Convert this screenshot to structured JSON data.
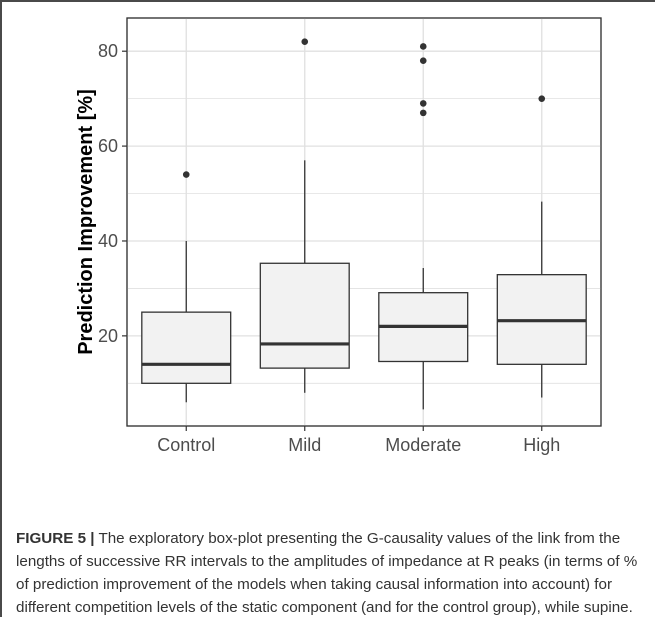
{
  "chart_data": {
    "type": "box",
    "categories": [
      "Control",
      "Mild",
      "Moderate",
      "High"
    ],
    "ylabel": "Prediction Improvement [%]",
    "xlabel": "",
    "ylim": [
      1,
      87
    ],
    "yticks": [
      20,
      40,
      60,
      80
    ],
    "grid": true,
    "colors": {
      "box_fill": "#f2f2f2",
      "line": "#333333",
      "grid": "#e0e0e0",
      "panel": "#ffffff"
    },
    "boxes": [
      {
        "category": "Control",
        "whisker_low": 6,
        "q1": 10,
        "median": 14,
        "q3": 25,
        "whisker_high": 40,
        "outliers": [
          54
        ]
      },
      {
        "category": "Mild",
        "whisker_low": 8,
        "q1": 13.2,
        "median": 18.3,
        "q3": 35.3,
        "whisker_high": 57,
        "outliers": [
          82
        ]
      },
      {
        "category": "Moderate",
        "whisker_low": 4.5,
        "q1": 14.6,
        "median": 22,
        "q3": 29.1,
        "whisker_high": 34.3,
        "outliers": [
          67,
          69,
          78,
          81
        ]
      },
      {
        "category": "High",
        "whisker_low": 7,
        "q1": 14,
        "median": 23.2,
        "q3": 32.9,
        "whisker_high": 48.3,
        "outliers": [
          70
        ]
      }
    ]
  },
  "caption": {
    "label": "FIGURE 5 |",
    "text": " The exploratory box-plot presenting the G-causality values of the link from the lengths of successive RR intervals to the amplitudes of impedance at R peaks (in terms of % of prediction improvement of the models when taking causal information into account) for different competition levels of the static component (and for the control group), while supine."
  }
}
